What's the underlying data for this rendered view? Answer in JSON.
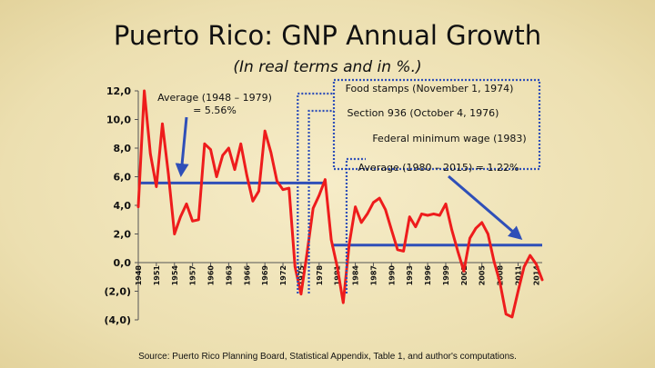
{
  "slide": {
    "title": "Puerto Rico:  GNP Annual Growth",
    "subtitle": "(In real terms and in %.)",
    "source": "Source:  Puerto Rico Planning Board, Statistical Appendix, Table 1, and author's computations."
  },
  "chart_data": {
    "type": "line",
    "title": "Puerto Rico:  GNP Annual Growth",
    "subtitle": "(In real terms and in %.)",
    "ylim": [
      -4,
      12
    ],
    "y_ticks": [
      12,
      10,
      8,
      6,
      4,
      2,
      0,
      -2,
      -4
    ],
    "y_tick_labels": [
      "12,0",
      "10,0",
      "8,0",
      "6,0",
      "4,0",
      "2,0",
      "0,0",
      "(2,0)",
      "(4,0)"
    ],
    "x_ticks": [
      1948,
      1951,
      1954,
      1957,
      1960,
      1963,
      1966,
      1969,
      1972,
      1975,
      1978,
      1981,
      1984,
      1987,
      1990,
      1993,
      1996,
      1999,
      2002,
      2005,
      2008,
      2011,
      2014
    ],
    "x_tick_labels": [
      "1948",
      "1951",
      "1954",
      "1957",
      "1960",
      "1963",
      "1966",
      "1969",
      "1972",
      "1975",
      "1978",
      "1981",
      "1984",
      "1987",
      "1990",
      "1993",
      "1996",
      "1999",
      "2002",
      "2005",
      "2008",
      "2011",
      "2014"
    ],
    "series": [
      {
        "name": "GNP Annual Growth (%)",
        "color": "#ee1c1c",
        "x": [
          1948,
          1949,
          1950,
          1951,
          1952,
          1953,
          1954,
          1955,
          1956,
          1957,
          1958,
          1959,
          1960,
          1961,
          1962,
          1963,
          1964,
          1965,
          1966,
          1967,
          1968,
          1969,
          1970,
          1971,
          1972,
          1973,
          1974,
          1975,
          1976,
          1977,
          1978,
          1979,
          1980,
          1981,
          1982,
          1983,
          1984,
          1985,
          1986,
          1987,
          1988,
          1989,
          1990,
          1991,
          1992,
          1993,
          1994,
          1995,
          1996,
          1997,
          1998,
          1999,
          2000,
          2001,
          2002,
          2003,
          2004,
          2005,
          2006,
          2007,
          2008,
          2009,
          2010,
          2011,
          2012,
          2013,
          2014,
          2015
        ],
        "values": [
          3.9,
          12.0,
          7.6,
          5.3,
          9.7,
          6.2,
          2.0,
          3.2,
          4.1,
          2.9,
          3.0,
          8.3,
          7.9,
          6.0,
          7.5,
          8.0,
          6.5,
          8.3,
          6.1,
          4.3,
          5.0,
          9.2,
          7.7,
          5.7,
          5.1,
          5.2,
          -0.3,
          -2.2,
          0.7,
          3.8,
          4.7,
          5.8,
          1.6,
          -0.3,
          -2.8,
          1.3,
          3.9,
          2.8,
          3.4,
          4.2,
          4.5,
          3.7,
          2.3,
          0.9,
          0.8,
          3.2,
          2.5,
          3.4,
          3.3,
          3.4,
          3.3,
          4.1,
          2.3,
          0.8,
          -0.6,
          1.7,
          2.4,
          2.8,
          2.0,
          0.1,
          -1.4,
          -3.6,
          -3.8,
          -2.0,
          -0.3,
          0.5,
          -0.1,
          -1.2
        ]
      }
    ],
    "average_lines": [
      {
        "label": "Average (1948 – 1979)",
        "value_label": "= 5.56%",
        "value": 5.56,
        "x_start": 1948,
        "x_end": 1979,
        "color": "#2f4fb8"
      },
      {
        "label": "Average (1980 – 2015) = 1.22%",
        "value": 1.22,
        "x_start": 1980,
        "x_end": 2015,
        "color": "#2f4fb8"
      }
    ],
    "events": [
      {
        "label": "Food stamps  (November 1, 1974)",
        "year": 1974
      },
      {
        "label": "Section 936  (October 4, 1976)",
        "year": 1976
      },
      {
        "label": "Federal minimum wage (1983)",
        "year": 1983
      }
    ]
  }
}
